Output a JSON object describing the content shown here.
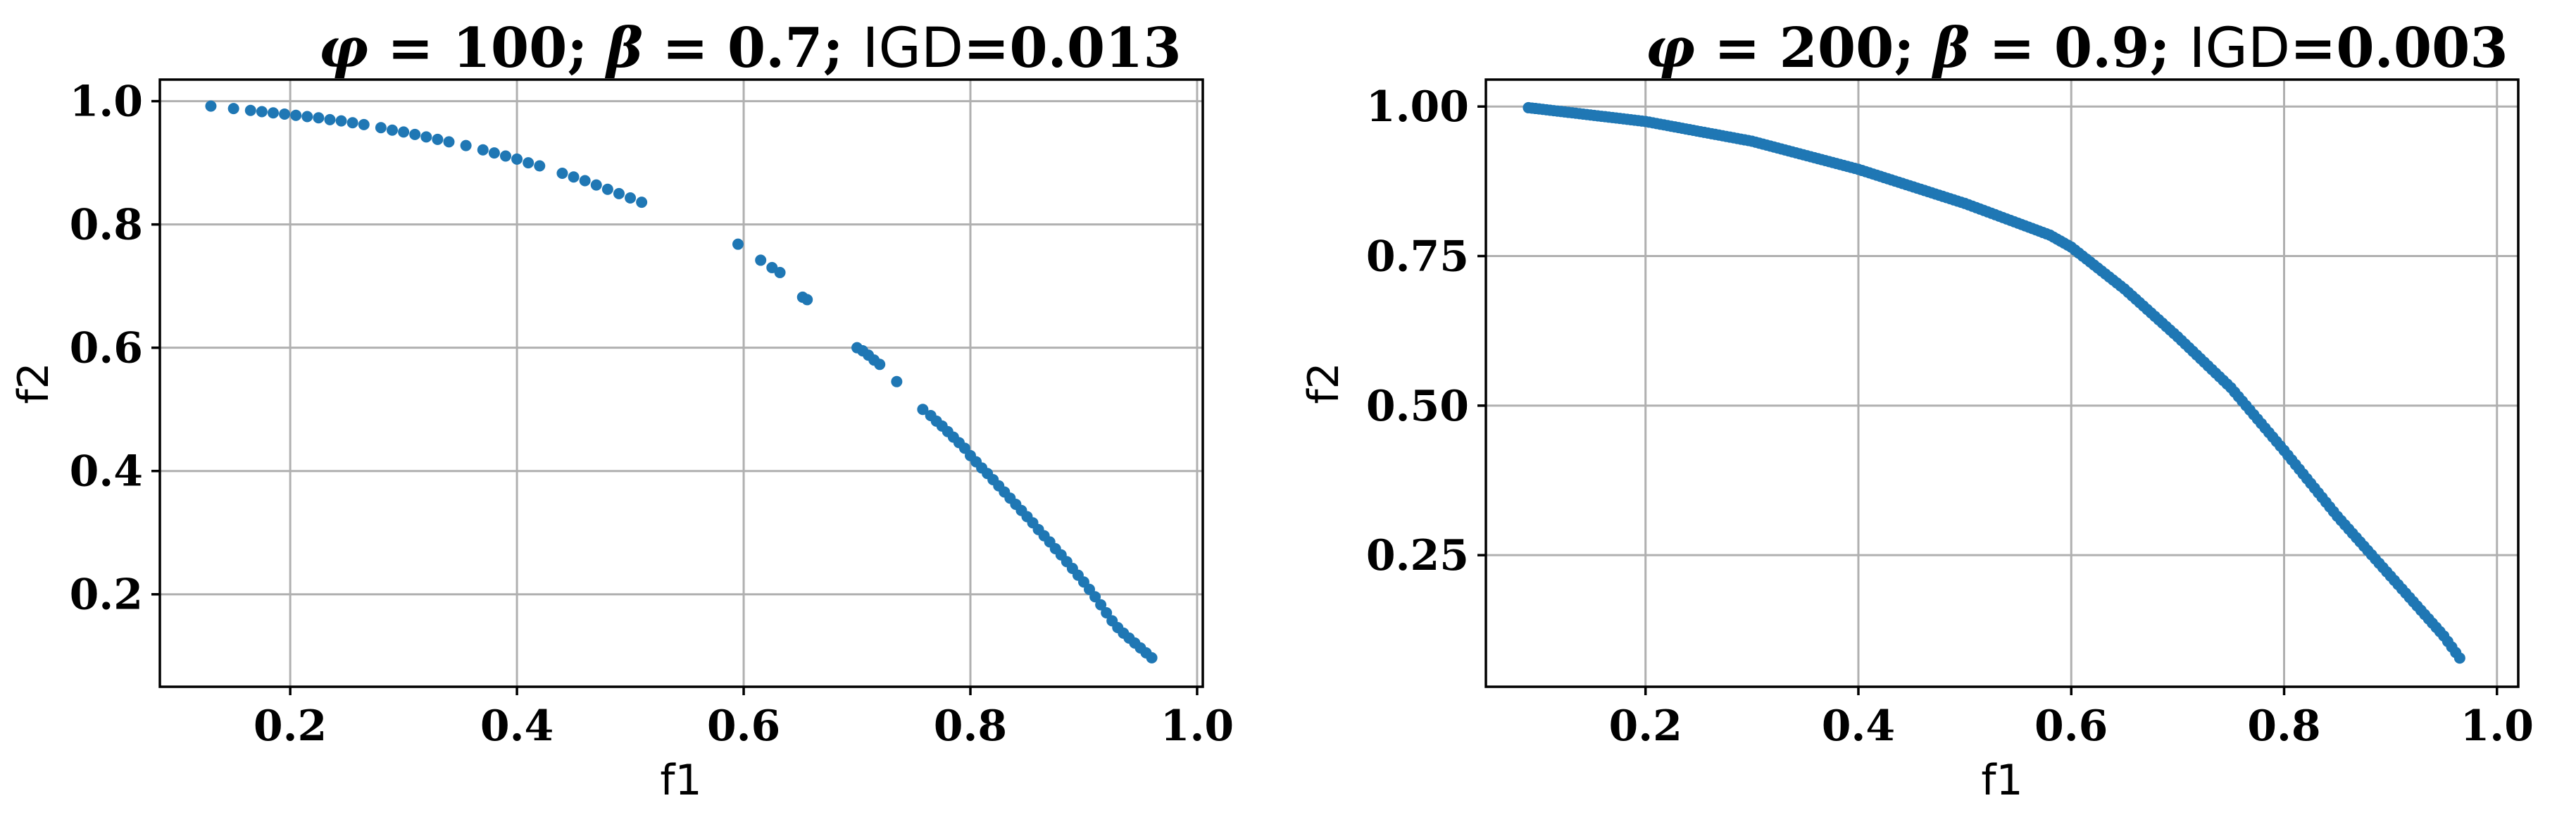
{
  "chart_data": [
    {
      "type": "scatter",
      "title": {
        "phi": "100",
        "beta": "0.7",
        "igd_label": "IGD",
        "igd": "0.013"
      },
      "xlabel": "f1",
      "ylabel": "f2",
      "xlim": [
        0.085,
        1.005
      ],
      "ylim": [
        0.05,
        1.035
      ],
      "xticks": [
        0.2,
        0.4,
        0.6,
        0.8,
        1.0
      ],
      "xtick_labels": [
        "0.2",
        "0.4",
        "0.6",
        "0.8",
        "1.0"
      ],
      "yticks": [
        0.2,
        0.4,
        0.6,
        0.8,
        1.0
      ],
      "ytick_labels": [
        "0.2",
        "0.4",
        "0.6",
        "0.8",
        "1.0"
      ],
      "grid": true,
      "color": "#1f77b4",
      "points": [
        [
          0.13,
          0.992
        ],
        [
          0.15,
          0.988
        ],
        [
          0.165,
          0.985
        ],
        [
          0.175,
          0.983
        ],
        [
          0.185,
          0.981
        ],
        [
          0.195,
          0.979
        ],
        [
          0.205,
          0.977
        ],
        [
          0.215,
          0.975
        ],
        [
          0.225,
          0.973
        ],
        [
          0.235,
          0.97
        ],
        [
          0.245,
          0.968
        ],
        [
          0.255,
          0.965
        ],
        [
          0.265,
          0.962
        ],
        [
          0.28,
          0.957
        ],
        [
          0.29,
          0.953
        ],
        [
          0.3,
          0.95
        ],
        [
          0.31,
          0.946
        ],
        [
          0.32,
          0.942
        ],
        [
          0.33,
          0.938
        ],
        [
          0.34,
          0.934
        ],
        [
          0.355,
          0.928
        ],
        [
          0.37,
          0.921
        ],
        [
          0.38,
          0.916
        ],
        [
          0.39,
          0.911
        ],
        [
          0.4,
          0.906
        ],
        [
          0.41,
          0.9
        ],
        [
          0.42,
          0.895
        ],
        [
          0.44,
          0.883
        ],
        [
          0.45,
          0.877
        ],
        [
          0.46,
          0.871
        ],
        [
          0.47,
          0.864
        ],
        [
          0.48,
          0.857
        ],
        [
          0.49,
          0.85
        ],
        [
          0.5,
          0.843
        ],
        [
          0.51,
          0.836
        ],
        [
          0.595,
          0.768
        ],
        [
          0.615,
          0.742
        ],
        [
          0.625,
          0.73
        ],
        [
          0.632,
          0.722
        ],
        [
          0.652,
          0.682
        ],
        [
          0.656,
          0.678
        ],
        [
          0.7,
          0.6
        ],
        [
          0.705,
          0.595
        ],
        [
          0.71,
          0.588
        ],
        [
          0.715,
          0.58
        ],
        [
          0.72,
          0.573
        ],
        [
          0.735,
          0.545
        ],
        [
          0.758,
          0.5
        ],
        [
          0.765,
          0.49
        ],
        [
          0.77,
          0.481
        ],
        [
          0.775,
          0.473
        ],
        [
          0.78,
          0.464
        ],
        [
          0.785,
          0.455
        ],
        [
          0.79,
          0.446
        ],
        [
          0.795,
          0.437
        ],
        [
          0.8,
          0.425
        ],
        [
          0.805,
          0.415
        ],
        [
          0.81,
          0.405
        ],
        [
          0.815,
          0.396
        ],
        [
          0.82,
          0.386
        ],
        [
          0.825,
          0.376
        ],
        [
          0.83,
          0.366
        ],
        [
          0.835,
          0.356
        ],
        [
          0.84,
          0.346
        ],
        [
          0.845,
          0.336
        ],
        [
          0.85,
          0.326
        ],
        [
          0.855,
          0.316
        ],
        [
          0.86,
          0.305
        ],
        [
          0.865,
          0.295
        ],
        [
          0.87,
          0.285
        ],
        [
          0.875,
          0.274
        ],
        [
          0.88,
          0.264
        ],
        [
          0.885,
          0.253
        ],
        [
          0.89,
          0.242
        ],
        [
          0.895,
          0.231
        ],
        [
          0.9,
          0.22
        ],
        [
          0.905,
          0.208
        ],
        [
          0.91,
          0.196
        ],
        [
          0.915,
          0.183
        ],
        [
          0.92,
          0.17
        ],
        [
          0.925,
          0.157
        ],
        [
          0.93,
          0.146
        ],
        [
          0.935,
          0.137
        ],
        [
          0.94,
          0.129
        ],
        [
          0.945,
          0.121
        ],
        [
          0.95,
          0.113
        ],
        [
          0.955,
          0.105
        ],
        [
          0.96,
          0.097
        ]
      ]
    },
    {
      "type": "scatter",
      "title": {
        "phi": "200",
        "beta": "0.9",
        "igd_label": "IGD",
        "igd": "0.003"
      },
      "xlabel": "f1",
      "ylabel": "f2",
      "xlim": [
        0.05,
        1.02
      ],
      "ylim": [
        0.03,
        1.045
      ],
      "xticks": [
        0.2,
        0.4,
        0.6,
        0.8,
        1.0
      ],
      "xtick_labels": [
        "0.2",
        "0.4",
        "0.6",
        "0.8",
        "1.0"
      ],
      "yticks": [
        0.25,
        0.5,
        0.75,
        1.0
      ],
      "ytick_labels": [
        "0.25",
        "0.50",
        "0.75",
        "1.00"
      ],
      "grid": true,
      "color": "#1f77b4",
      "curve_points": [
        [
          0.09,
          0.998
        ],
        [
          0.1,
          0.996
        ],
        [
          0.2,
          0.975
        ],
        [
          0.3,
          0.942
        ],
        [
          0.4,
          0.895
        ],
        [
          0.5,
          0.838
        ],
        [
          0.55,
          0.805
        ],
        [
          0.58,
          0.785
        ],
        [
          0.6,
          0.765
        ],
        [
          0.65,
          0.695
        ],
        [
          0.7,
          0.615
        ],
        [
          0.75,
          0.53
        ],
        [
          0.8,
          0.425
        ],
        [
          0.85,
          0.315
        ],
        [
          0.9,
          0.215
        ],
        [
          0.95,
          0.115
        ],
        [
          0.965,
          0.078
        ]
      ]
    }
  ]
}
